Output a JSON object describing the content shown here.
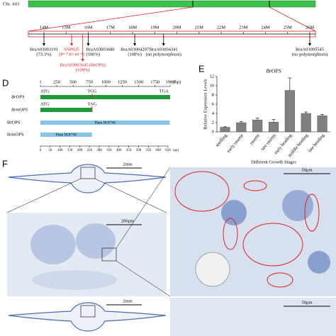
{
  "chromosome": {
    "label": "Chr. A03"
  },
  "map": {
    "ticks": [
      {
        "value": 14,
        "label": "14M"
      },
      {
        "value": 15,
        "label": "15M"
      },
      {
        "value": 16,
        "label": "16M"
      },
      {
        "value": 17,
        "label": "17M"
      },
      {
        "value": 18,
        "label": "18M"
      },
      {
        "value": 19,
        "label": "19M"
      },
      {
        "value": 20,
        "label": "20M"
      },
      {
        "value": 21,
        "label": "21M"
      },
      {
        "value": 22,
        "label": "22M"
      },
      {
        "value": 23,
        "label": "23M"
      },
      {
        "value": 24,
        "label": "24M"
      },
      {
        "value": 25,
        "label": "25M"
      },
      {
        "value": 26,
        "label": "26M"
      }
    ],
    "markers": [
      {
        "position": 14.0,
        "label": "BraA03003191",
        "note": "(73.3%)",
        "color": "#000000"
      },
      {
        "position": 15.25,
        "label": "SNP025",
        "note": "(P=7.8×10⁻⁸)",
        "color": "#e0201b"
      },
      {
        "position": 15.75,
        "label": "BraA03003645 (BrOPS)",
        "note": "(100%)",
        "color": "#e0201b"
      },
      {
        "position": 16.0,
        "label": "BraA03003680",
        "note": "(100%)",
        "color": "#000000"
      },
      {
        "position": 18.1,
        "label": "BraA03004207",
        "note": "(100%)",
        "color": "#000000"
      },
      {
        "position": 19.4,
        "label": "BraA03004341",
        "note": "(no polymorphism)",
        "color": "#000000"
      },
      {
        "position": 26.0,
        "label": "BraA03005545",
        "note": "(no polymorphism)",
        "color": "#000000"
      }
    ]
  },
  "panel_labels": {
    "d": "D",
    "e": "E",
    "f": "F"
  },
  "gene": {
    "ruler": {
      "ticks": [
        1,
        250,
        500,
        750,
        1000,
        1250,
        1500,
        1750,
        1980
      ],
      "unit": "(bp)"
    },
    "tracks": [
      {
        "name": "BrOPS",
        "length": 1980,
        "start_label": "ATG",
        "stop_label": "TGA",
        "site": 790,
        "site_label": "TGG"
      },
      {
        "name": "BrmOPS",
        "length": 790,
        "start_label": "ATG",
        "site": 790,
        "site_label": "TAG"
      }
    ]
  },
  "protein": {
    "ruler": {
      "ticks": [
        0,
        50,
        100,
        150,
        200,
        250,
        300,
        350,
        400,
        450,
        500,
        550,
        600,
        650
      ],
      "unit": "(aa)"
    },
    "tracks": [
      {
        "name": "BrOPS",
        "length": 659,
        "domain": "Pfam DUF740"
      },
      {
        "name": "BrmOPS",
        "length": 263,
        "domain": "Pfam DUF740"
      }
    ]
  },
  "chart_data": {
    "type": "bar",
    "title": "BrOPS",
    "y_label": "Relative Expression Levels",
    "x_label": "Different Growth Stages",
    "categories": [
      "seedling",
      "early rosette",
      "rosette",
      "late rosette",
      "early heading",
      "middle heading",
      "late heading"
    ],
    "values": [
      1.0,
      2.0,
      2.6,
      2.1,
      9.0,
      4.0,
      3.5
    ],
    "errors": [
      0.1,
      0.2,
      0.4,
      0.6,
      2.7,
      0.3,
      0.3
    ],
    "color": "#808080",
    "ylim": [
      0,
      12
    ],
    "yticks": [
      0,
      2,
      4,
      6,
      8,
      10,
      12
    ]
  },
  "micrographs": {
    "scales": [
      "2mm",
      "200μm",
      "50μm",
      "2mm",
      "50μm"
    ]
  }
}
